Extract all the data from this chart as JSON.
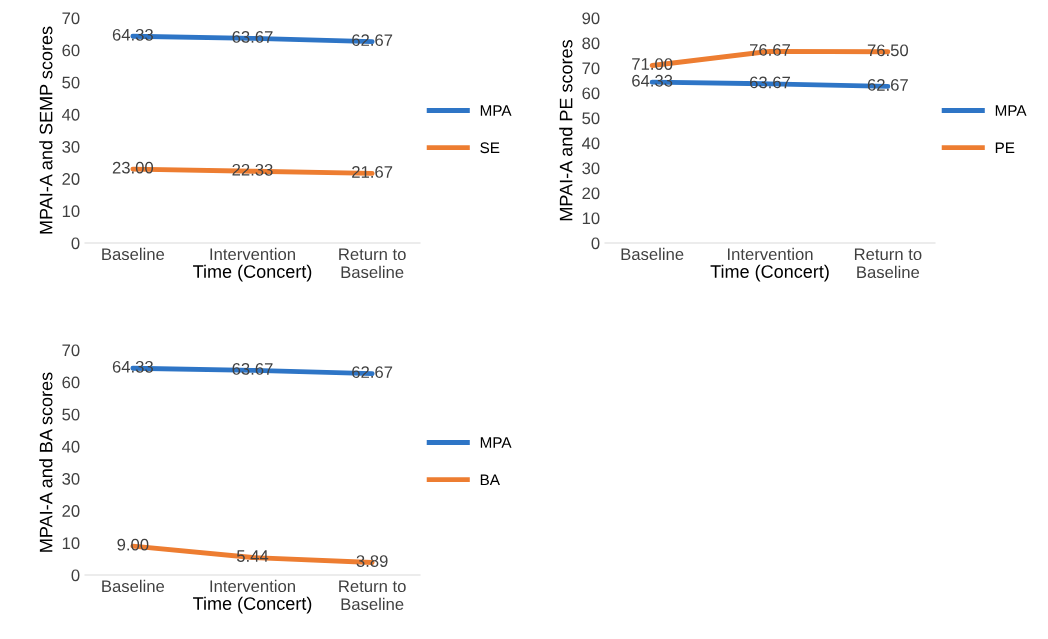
{
  "chart_data": [
    {
      "type": "line",
      "xlabel": "Time (Concert)",
      "ylabel": "MPAI-A and SEMP scores",
      "categories": [
        "Baseline",
        "Intervention",
        "Return to\nBaseline"
      ],
      "ylim": [
        0,
        70
      ],
      "yticks": [
        0,
        10,
        20,
        30,
        40,
        50,
        60,
        70
      ],
      "grid": false,
      "legend": "right",
      "marker": "none",
      "series": [
        {
          "name": "MPA",
          "color": "#2e75c6",
          "values": [
            64.33,
            63.67,
            62.67
          ],
          "value_labels": [
            "64.33",
            "63.67",
            "62.67"
          ]
        },
        {
          "name": "SE",
          "color": "#ed7d31",
          "values": [
            23.0,
            22.33,
            21.67
          ],
          "value_labels": [
            "23.00",
            "22.33",
            "21.67"
          ]
        }
      ]
    },
    {
      "type": "line",
      "xlabel": "Time (Concert)",
      "ylabel": "MPAI-A and PE scores",
      "categories": [
        "Baseline",
        "Intervention",
        "Return to\nBaseline"
      ],
      "ylim": [
        0,
        90
      ],
      "yticks": [
        0,
        10,
        20,
        30,
        40,
        50,
        60,
        70,
        80,
        90
      ],
      "grid": false,
      "legend": "right",
      "marker": "none",
      "series": [
        {
          "name": "MPA",
          "color": "#2e75c6",
          "values": [
            64.33,
            63.67,
            62.67
          ],
          "value_labels": [
            "64.33",
            "63.67",
            "62.67"
          ]
        },
        {
          "name": "PE",
          "color": "#ed7d31",
          "values": [
            71.0,
            76.67,
            76.5
          ],
          "value_labels": [
            "71.00",
            "76.67",
            "76.50"
          ]
        }
      ]
    },
    {
      "type": "line",
      "xlabel": "Time (Concert)",
      "ylabel": "MPAI-A and BA scores",
      "categories": [
        "Baseline",
        "Intervention",
        "Return to\nBaseline"
      ],
      "ylim": [
        0,
        70
      ],
      "yticks": [
        0,
        10,
        20,
        30,
        40,
        50,
        60,
        70
      ],
      "grid": false,
      "legend": "right",
      "marker": "none",
      "series": [
        {
          "name": "MPA",
          "color": "#2e75c6",
          "values": [
            64.33,
            63.67,
            62.67
          ],
          "value_labels": [
            "64.33",
            "63.67",
            "62.67"
          ]
        },
        {
          "name": "BA",
          "color": "#ed7d31",
          "values": [
            9.0,
            5.44,
            3.89
          ],
          "value_labels": [
            "9.00",
            "5.44",
            "3.89"
          ]
        }
      ]
    }
  ]
}
